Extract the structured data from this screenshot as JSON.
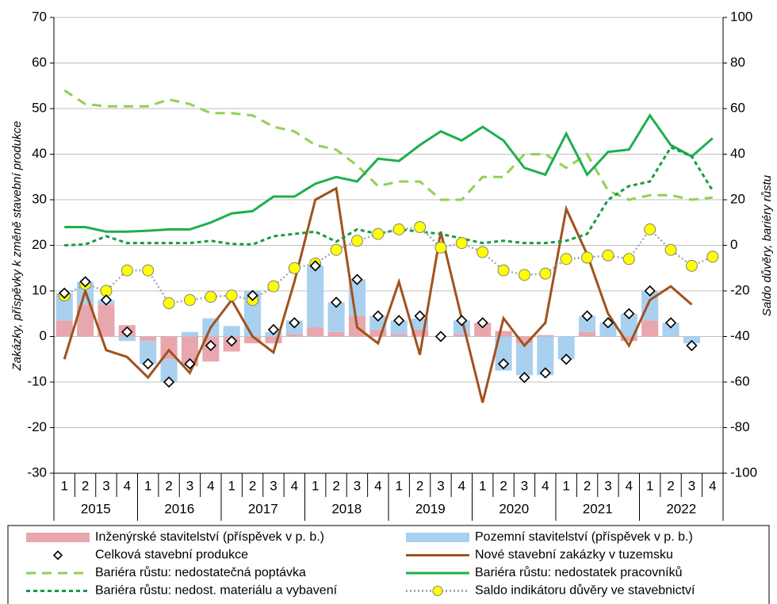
{
  "chart_data": {
    "type": "combo",
    "y_label": "Zakázky, příspěvky k změně stavební produkce",
    "y2_label": "Saldo důvěry, bariéry růstu",
    "categories": [
      "1",
      "2",
      "3",
      "4",
      "1",
      "2",
      "3",
      "4",
      "1",
      "2",
      "3",
      "4",
      "1",
      "2",
      "3",
      "4",
      "1",
      "2",
      "3",
      "4",
      "1",
      "2",
      "3",
      "4",
      "1",
      "2",
      "3",
      "4",
      "1",
      "2",
      "3",
      "4"
    ],
    "groups": [
      "2015",
      "2016",
      "2017",
      "2018",
      "2019",
      "2020",
      "2021",
      "2022"
    ],
    "ylim": [
      -30,
      70
    ],
    "yticks": [
      -30,
      -20,
      -10,
      0,
      10,
      20,
      30,
      40,
      50,
      60,
      70
    ],
    "y2lim": [
      -100,
      100
    ],
    "y2ticks": [
      -100,
      -80,
      -60,
      -40,
      -20,
      0,
      20,
      40,
      60,
      80,
      100
    ],
    "grid": true,
    "series": [
      {
        "name": "Inženýrské stavitelství (příspěvek v p. b.)",
        "type": "bar",
        "color": "#e8a7ae",
        "values": [
          3.5,
          7,
          7,
          2.5,
          -1,
          -5,
          -6.5,
          -5.5,
          -3.3,
          -1.5,
          -1.5,
          0.5,
          2,
          1,
          4.5,
          1.5,
          0.5,
          1.5,
          0,
          0.5,
          3,
          1.2,
          -1.5,
          0.3,
          0,
          1,
          0,
          -1,
          3.5,
          0,
          0,
          null
        ]
      },
      {
        "name": "Pozemní stavitelství (příspěvek v p. b.)",
        "type": "bar",
        "color": "#a9d0ef",
        "values": [
          6,
          5,
          1,
          -1,
          -5,
          -5,
          1,
          4,
          2.3,
          10,
          1,
          3,
          13.5,
          6.5,
          8,
          3,
          3,
          2.5,
          0,
          3,
          0,
          -7.5,
          -7,
          -8.5,
          -5,
          3.5,
          3,
          5,
          6.5,
          3,
          -1.5,
          null
        ]
      },
      {
        "name": "Celková stavební produkce",
        "type": "scatter",
        "marker": "diamond",
        "color": "#000000",
        "values": [
          9.5,
          12,
          8,
          1,
          -6,
          -10,
          -6,
          -2,
          -1,
          9,
          1.5,
          3,
          15.5,
          7.5,
          12.5,
          4.5,
          3.5,
          4.5,
          0,
          3.5,
          3,
          -6,
          -9,
          -8,
          -5,
          4.5,
          3,
          5,
          10,
          3,
          -2,
          null
        ]
      },
      {
        "name": "Nové stavební zakázky v tuzemsku",
        "type": "line",
        "line_style": "solid",
        "color": "#a0521e",
        "values": [
          -5,
          10,
          -3,
          -4.5,
          -9,
          -3,
          -8,
          2,
          8,
          0,
          -3.5,
          12,
          30,
          32.5,
          2,
          -1.5,
          12,
          -4,
          23,
          4,
          -14.5,
          4,
          -2,
          3,
          28,
          18,
          5,
          -2,
          8,
          11,
          7,
          null
        ]
      },
      {
        "name": "Bariéra růstu: nedostatečná poptávka",
        "type": "line",
        "axis": "y2",
        "line_style": "dashed",
        "color": "#92d050",
        "values": [
          68,
          62,
          61,
          61,
          61,
          64,
          62,
          58,
          58,
          57,
          52,
          50,
          44,
          42,
          35,
          26,
          28,
          28,
          20,
          20,
          30,
          30,
          40,
          40,
          34,
          40,
          24,
          20,
          22,
          22,
          20,
          21
        ]
      },
      {
        "name": "Bariéra růstu: nedostatek pracovníků",
        "type": "line",
        "axis": "y2",
        "line_style": "solid",
        "color": "#1fae4e",
        "values": [
          8,
          8,
          6,
          6,
          6.4,
          7,
          7,
          10,
          14,
          15,
          21.4,
          21.4,
          27,
          30,
          28,
          38,
          37,
          44,
          50,
          46,
          52,
          46,
          34,
          31,
          49,
          31,
          41,
          42,
          57,
          44,
          39,
          47
        ]
      },
      {
        "name": "Bariéra růstu: nedost. materiálu a vybavení",
        "type": "line",
        "axis": "y2",
        "line_style": "short-dashed",
        "color": "#169c43",
        "values": [
          0,
          0.4,
          4,
          1,
          1,
          1,
          1,
          2,
          0.6,
          0.4,
          4,
          5,
          6,
          1.6,
          7,
          5,
          7,
          6,
          5,
          3,
          1,
          2,
          1,
          1,
          2,
          5,
          20,
          26,
          28,
          43,
          39,
          24
        ]
      },
      {
        "name": "Saldo indikátoru důvěry ve stavebnictví",
        "type": "line",
        "axis": "y2",
        "line_style": "dotted",
        "marker": "circle",
        "color": "#a6a6a6",
        "marker_color": "#ffff00",
        "values": [
          -22,
          -17,
          -20,
          -11,
          -11,
          -25.4,
          -24,
          -22.6,
          -22,
          -24,
          -18,
          -10,
          -8,
          -2,
          2,
          5,
          7,
          8,
          -1,
          1,
          -3,
          -11,
          -13,
          -12.4,
          -6,
          -5.4,
          -4.4,
          -6,
          7,
          -2,
          -9,
          -5
        ]
      }
    ]
  }
}
